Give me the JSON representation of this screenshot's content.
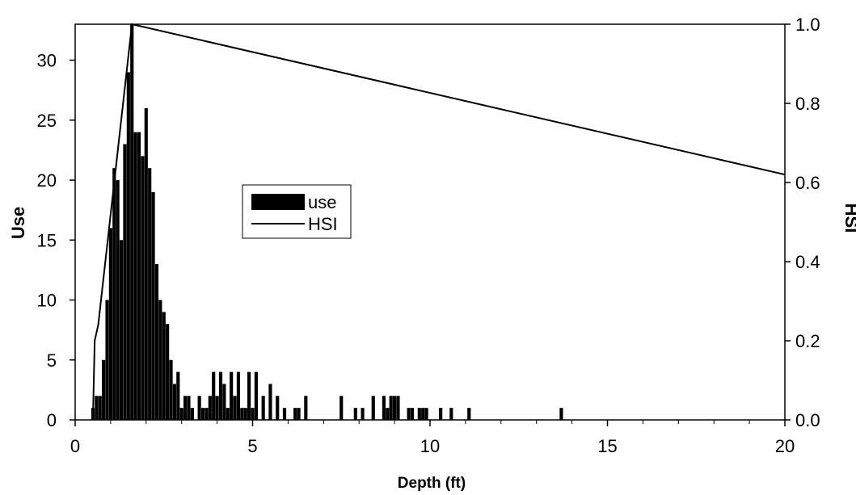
{
  "chart_data": {
    "type": "bar",
    "xlabel": "Depth (ft)",
    "ylabel": "Use",
    "y2label": "HSI",
    "xlim": [
      0,
      20
    ],
    "ylim": [
      0,
      33
    ],
    "y2lim": [
      0,
      1
    ],
    "x_ticks": [
      "0",
      "5",
      "10",
      "15",
      "20"
    ],
    "y_ticks": [
      "0",
      "5",
      "10",
      "15",
      "20",
      "25",
      "30"
    ],
    "y2_ticks": [
      "0.0",
      "0.2",
      "0.4",
      "0.6",
      "0.8",
      "1.0"
    ],
    "grid": false,
    "legend_position": "center-left",
    "legend": [
      {
        "label": "use",
        "kind": "bar"
      },
      {
        "label": "HSI",
        "kind": "line"
      }
    ],
    "bar_color": "#000000",
    "line_color": "#000000",
    "series": [
      {
        "name": "use",
        "axis": "left",
        "type": "bar",
        "x": [
          0.5,
          0.6,
          0.7,
          0.8,
          0.9,
          1.0,
          1.1,
          1.2,
          1.3,
          1.4,
          1.5,
          1.6,
          1.7,
          1.8,
          1.9,
          2.0,
          2.1,
          2.2,
          2.3,
          2.4,
          2.5,
          2.6,
          2.7,
          2.8,
          2.9,
          3.0,
          3.1,
          3.2,
          3.3,
          3.5,
          3.6,
          3.7,
          3.8,
          3.9,
          4.0,
          4.1,
          4.2,
          4.3,
          4.4,
          4.5,
          4.6,
          4.7,
          4.8,
          4.9,
          5.0,
          5.1,
          5.3,
          5.5,
          5.7,
          5.9,
          6.2,
          6.3,
          6.5,
          7.5,
          7.9,
          8.1,
          8.4,
          8.7,
          8.8,
          8.9,
          9.0,
          9.1,
          9.4,
          9.5,
          9.7,
          9.8,
          9.9,
          10.3,
          10.6,
          11.1,
          13.7
        ],
        "values": [
          1,
          2,
          2,
          5,
          10,
          16,
          21,
          20,
          15,
          23,
          29,
          33,
          24,
          24,
          22,
          26,
          21,
          19,
          13,
          10,
          9,
          8,
          5,
          3,
          4,
          1,
          2,
          2,
          1,
          2,
          1,
          1,
          2,
          4,
          2,
          4,
          3,
          1,
          4,
          2,
          4,
          1,
          1,
          4,
          1,
          4,
          2,
          3,
          2,
          1,
          1,
          1,
          2,
          2,
          1,
          1,
          2,
          2,
          1,
          2,
          2,
          2,
          1,
          1,
          1,
          1,
          1,
          1,
          1,
          1,
          1
        ]
      },
      {
        "name": "HSI",
        "axis": "right",
        "type": "line",
        "x": [
          0.5,
          0.55,
          0.6,
          0.65,
          1.6,
          20
        ],
        "values": [
          0.0,
          0.2,
          0.22,
          0.24,
          1.0,
          0.62
        ]
      }
    ]
  }
}
